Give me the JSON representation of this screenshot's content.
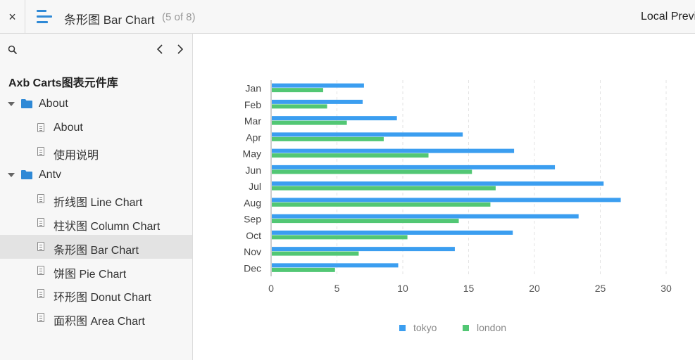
{
  "topbar": {
    "close_symbol": "×",
    "menu_icon": "menu-icon",
    "doc_title": "条形图 Bar Chart",
    "page_count": "(5 of 8)",
    "preview_label": "Local Previ"
  },
  "sidebar": {
    "search_icon": "search-icon",
    "library_title": "Axb Carts图表元件库",
    "items": [
      {
        "type": "folder",
        "label": "About"
      },
      {
        "type": "doc",
        "label": "About"
      },
      {
        "type": "doc",
        "label": "使用说明"
      },
      {
        "type": "folder",
        "label": "Antv"
      },
      {
        "type": "doc",
        "label": "折线图 Line Chart"
      },
      {
        "type": "doc",
        "label": "柱状图 Column Chart"
      },
      {
        "type": "doc",
        "label": "条形图 Bar Chart",
        "selected": true
      },
      {
        "type": "doc",
        "label": "饼图 Pie Chart"
      },
      {
        "type": "doc",
        "label": "环形图 Donut Chart"
      },
      {
        "type": "doc",
        "label": "面积图 Area Chart"
      }
    ]
  },
  "colors": {
    "tokyo": "#3b9ef0",
    "london": "#52c774",
    "accent": "#2f89d6"
  },
  "chart_data": {
    "type": "bar",
    "orientation": "horizontal",
    "categories": [
      "Jan",
      "Feb",
      "Mar",
      "Apr",
      "May",
      "Jun",
      "Jul",
      "Aug",
      "Sep",
      "Oct",
      "Nov",
      "Dec"
    ],
    "series": [
      {
        "name": "tokyo",
        "values": [
          7.0,
          6.9,
          9.5,
          14.5,
          18.4,
          21.5,
          25.2,
          26.5,
          23.3,
          18.3,
          13.9,
          9.6
        ]
      },
      {
        "name": "london",
        "values": [
          3.9,
          4.2,
          5.7,
          8.5,
          11.9,
          15.2,
          17.0,
          16.6,
          14.2,
          10.3,
          6.6,
          4.8
        ]
      }
    ],
    "xlim": [
      0,
      30
    ],
    "ticks": [
      "0",
      "5",
      "10",
      "15",
      "20",
      "25",
      "30"
    ],
    "grid": true,
    "legend": "bottom"
  }
}
